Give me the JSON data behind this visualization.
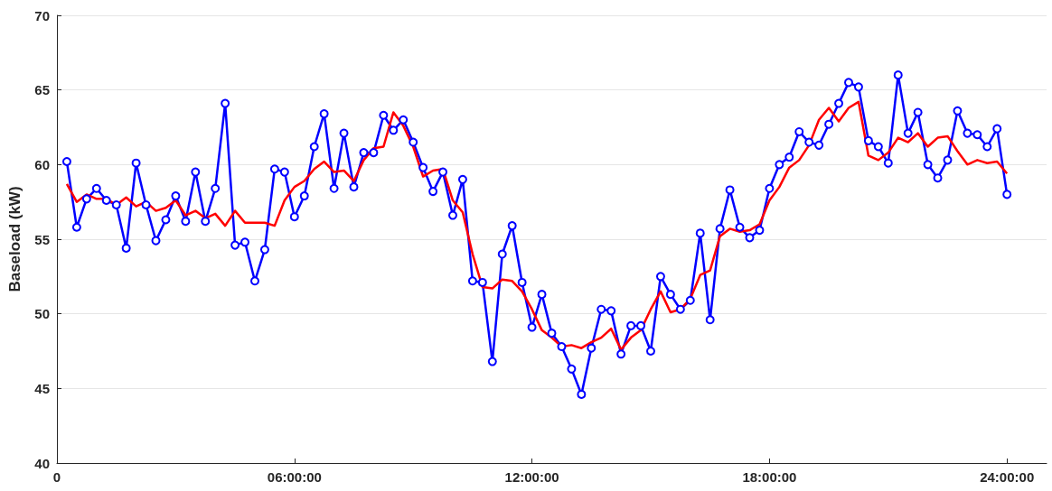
{
  "chart_data": {
    "type": "line",
    "ylabel": "Baseload (kW)",
    "x": [
      0.25,
      0.5,
      0.75,
      1,
      1.25,
      1.5,
      1.75,
      2,
      2.25,
      2.5,
      2.75,
      3,
      3.25,
      3.5,
      3.75,
      4,
      4.25,
      4.5,
      4.75,
      5,
      5.25,
      5.5,
      5.75,
      6,
      6.25,
      6.5,
      6.75,
      7,
      7.25,
      7.5,
      7.75,
      8,
      8.25,
      8.5,
      8.75,
      9,
      9.25,
      9.5,
      9.75,
      10,
      10.25,
      10.5,
      10.75,
      11,
      11.25,
      11.5,
      11.75,
      12,
      12.25,
      12.5,
      12.75,
      13,
      13.25,
      13.5,
      13.75,
      14,
      14.25,
      14.5,
      14.75,
      15,
      15.25,
      15.5,
      15.75,
      16,
      16.25,
      16.5,
      16.75,
      17,
      17.25,
      17.5,
      17.75,
      18,
      18.25,
      18.5,
      18.75,
      19,
      19.25,
      19.5,
      19.75,
      20,
      20.25,
      20.5,
      20.75,
      21,
      21.25,
      21.5,
      21.75,
      22,
      22.25,
      22.5,
      22.75,
      23,
      23.25,
      23.5,
      23.75,
      24
    ],
    "xlim": [
      0,
      25
    ],
    "xticks": [
      0,
      {
        "value": 6,
        "label": "06:00:00"
      },
      {
        "value": 12,
        "label": "12:00:00"
      },
      {
        "value": 18,
        "label": "18:00:00"
      },
      {
        "value": 24,
        "label": "24:00:00"
      }
    ],
    "ylim": [
      40,
      70
    ],
    "yticks": [
      40,
      45,
      50,
      55,
      60,
      65,
      70
    ],
    "grid": "y",
    "series": [
      {
        "color": "#0000ff",
        "marker": "circle",
        "values": [
          60.2,
          55.8,
          57.7,
          58.4,
          57.6,
          57.3,
          54.4,
          60.1,
          57.3,
          54.9,
          56.3,
          57.9,
          56.2,
          59.5,
          56.2,
          58.4,
          64.1,
          54.6,
          54.8,
          52.2,
          54.3,
          59.7,
          59.5,
          56.5,
          57.9,
          61.2,
          63.4,
          58.4,
          62.1,
          58.5,
          60.8,
          60.8,
          63.3,
          62.3,
          63.0,
          61.5,
          59.8,
          58.2,
          59.5,
          56.6,
          59.0,
          52.2,
          52.1,
          46.8,
          54.0,
          55.9,
          52.1,
          49.1,
          51.3,
          48.7,
          47.8,
          46.3,
          44.6,
          47.7,
          50.3,
          50.2,
          47.3,
          49.2,
          49.2,
          47.5,
          52.5,
          51.3,
          50.3,
          50.9,
          55.4,
          49.6,
          55.7,
          58.3,
          55.8,
          55.1,
          55.6,
          58.4,
          60.0,
          60.5,
          62.2,
          61.5,
          61.3,
          62.7,
          64.1,
          65.5,
          65.2,
          61.6,
          61.2,
          60.1,
          66.0,
          62.1,
          63.5,
          60.0,
          59.1,
          60.3,
          63.6,
          62.1,
          62.0,
          61.2,
          62.4,
          58.0
        ]
      },
      {
        "color": "#ff0000",
        "marker": "none",
        "values": [
          58.7,
          57.5,
          58.0,
          57.7,
          57.7,
          57.3,
          57.8,
          57.2,
          57.5,
          56.9,
          57.1,
          57.6,
          56.6,
          56.9,
          56.4,
          56.7,
          55.9,
          56.9,
          56.1,
          56.1,
          56.1,
          55.9,
          57.6,
          58.5,
          58.9,
          59.7,
          60.2,
          59.5,
          59.6,
          58.9,
          60.3,
          61.1,
          61.2,
          63.5,
          62.6,
          61.2,
          59.2,
          59.6,
          59.7,
          57.6,
          56.8,
          54.0,
          51.8,
          51.7,
          52.3,
          52.2,
          51.5,
          50.3,
          48.9,
          48.4,
          47.8,
          47.9,
          47.7,
          48.1,
          48.4,
          49.0,
          47.6,
          48.4,
          48.9,
          50.3,
          51.5,
          50.1,
          50.3,
          51.0,
          52.6,
          52.9,
          55.2,
          55.7,
          55.5,
          55.6,
          56.0,
          57.6,
          58.5,
          59.8,
          60.3,
          61.3,
          63.0,
          63.8,
          62.9,
          63.8,
          64.2,
          60.6,
          60.3,
          60.8,
          61.8,
          61.5,
          62.1,
          61.2,
          61.8,
          61.9,
          60.9,
          60.0,
          60.3,
          60.1,
          60.2,
          59.4
        ]
      }
    ]
  }
}
